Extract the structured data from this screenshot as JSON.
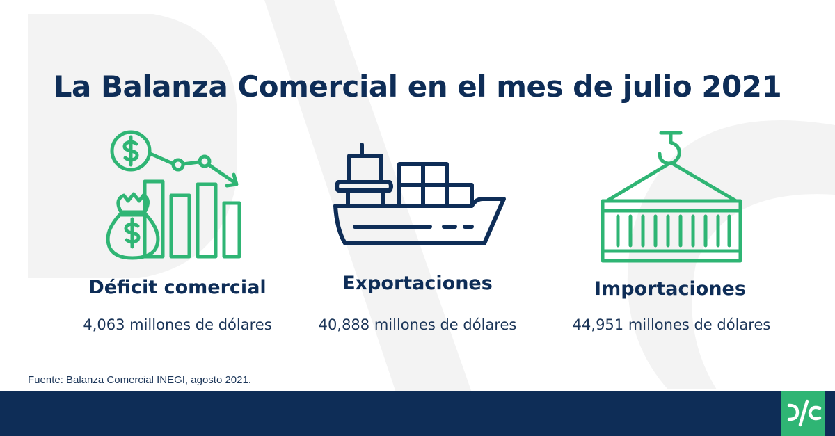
{
  "title": "La Balanza Comercial en el mes de julio 2021",
  "items": [
    {
      "icon": "money-chart-down-icon",
      "label": "Déficit comercial",
      "value": "4,063 millones de dólares"
    },
    {
      "icon": "cargo-ship-icon",
      "label": "Exportaciones",
      "value": "40,888 millones de dólares"
    },
    {
      "icon": "hanging-container-icon",
      "label": "Importaciones",
      "value": "44,951 millones de dólares"
    }
  ],
  "source": "Fuente: Balanza Comercial INEGI, agosto 2021.",
  "colors": {
    "navy": "#0e2d57",
    "green": "#2fb574",
    "watermark": "#f3f3f3"
  },
  "logo": {
    "icon": "pc-logo-icon"
  }
}
